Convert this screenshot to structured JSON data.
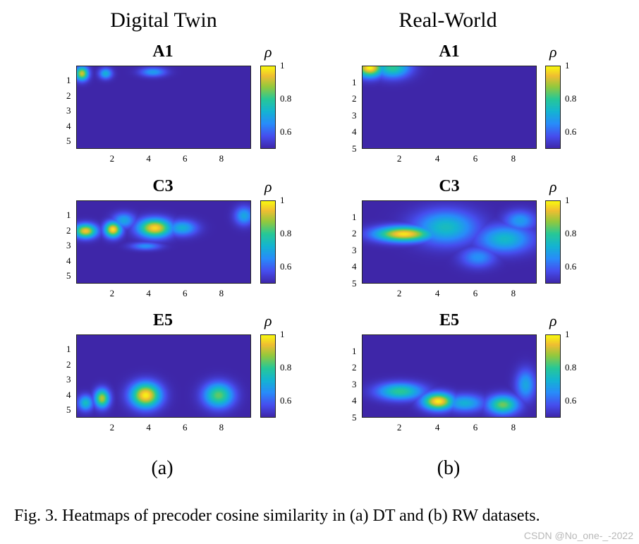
{
  "columns": [
    {
      "title": "Digital Twin",
      "sublabel": "(a)"
    },
    {
      "title": "Real-World",
      "sublabel": "(b)"
    }
  ],
  "caption": "Fig. 3.   Heatmaps of precoder cosine similarity in (a) DT and (b) RW datasets.",
  "watermark": "CSDN @No_one-_-2022",
  "colorbar_label": "ρ",
  "colorbar_ticks": [
    "0.6",
    "0.8",
    "1"
  ],
  "x_ticks": [
    "2",
    "4",
    "6",
    "8"
  ],
  "y_ticks": [
    "1",
    "2",
    "3",
    "4",
    "5"
  ],
  "colors": {
    "low": "#3d26a8",
    "mid": "#14b8b8",
    "high": "#f9fb0e"
  },
  "chart_data": [
    {
      "type": "heatmap",
      "column": "Digital Twin",
      "title": "A1",
      "xlim": [
        0,
        9.6
      ],
      "ylim": [
        0,
        5.5
      ],
      "clim": [
        0.5,
        1
      ],
      "blobs": [
        {
          "x": 0.3,
          "y": 0.5,
          "value": 0.92,
          "sx": 0.35,
          "sy": 0.45
        },
        {
          "x": 1.6,
          "y": 0.5,
          "value": 0.72,
          "sx": 0.35,
          "sy": 0.35
        },
        {
          "x": 4.2,
          "y": 0.4,
          "value": 0.68,
          "sx": 0.7,
          "sy": 0.3
        }
      ]
    },
    {
      "type": "heatmap",
      "column": "Digital Twin",
      "title": "C3",
      "xlim": [
        0,
        9.6
      ],
      "ylim": [
        0,
        5.5
      ],
      "clim": [
        0.5,
        1
      ],
      "blobs": [
        {
          "x": 0.5,
          "y": 2.0,
          "value": 0.95,
          "sx": 0.6,
          "sy": 0.45
        },
        {
          "x": 2.0,
          "y": 1.9,
          "value": 0.98,
          "sx": 0.45,
          "sy": 0.5
        },
        {
          "x": 4.3,
          "y": 1.8,
          "value": 0.97,
          "sx": 0.9,
          "sy": 0.6
        },
        {
          "x": 2.6,
          "y": 1.3,
          "value": 0.7,
          "sx": 0.6,
          "sy": 0.5
        },
        {
          "x": 5.8,
          "y": 1.8,
          "value": 0.72,
          "sx": 0.8,
          "sy": 0.5
        },
        {
          "x": 3.8,
          "y": 3.0,
          "value": 0.66,
          "sx": 0.8,
          "sy": 0.25
        },
        {
          "x": 9.2,
          "y": 1.0,
          "value": 0.7,
          "sx": 0.5,
          "sy": 0.6
        }
      ]
    },
    {
      "type": "heatmap",
      "column": "Digital Twin",
      "title": "E5",
      "xlim": [
        0,
        9.6
      ],
      "ylim": [
        0,
        5.5
      ],
      "clim": [
        0.5,
        1
      ],
      "blobs": [
        {
          "x": 1.4,
          "y": 4.2,
          "value": 0.9,
          "sx": 0.4,
          "sy": 0.6
        },
        {
          "x": 0.5,
          "y": 4.5,
          "value": 0.75,
          "sx": 0.4,
          "sy": 0.5
        },
        {
          "x": 3.8,
          "y": 4.0,
          "value": 0.99,
          "sx": 0.8,
          "sy": 0.8
        },
        {
          "x": 7.8,
          "y": 4.0,
          "value": 0.84,
          "sx": 0.8,
          "sy": 0.8
        }
      ]
    },
    {
      "type": "heatmap",
      "column": "Real-World",
      "title": "A1",
      "xlim": [
        0,
        9.2
      ],
      "ylim": [
        0,
        5.0
      ],
      "clim": [
        0.5,
        1
      ],
      "blobs": [
        {
          "x": 0.4,
          "y": 0.1,
          "value": 1.0,
          "sx": 0.7,
          "sy": 0.55
        },
        {
          "x": 1.6,
          "y": 0.1,
          "value": 0.8,
          "sx": 0.9,
          "sy": 0.6
        }
      ]
    },
    {
      "type": "heatmap",
      "column": "Real-World",
      "title": "C3",
      "xlim": [
        0,
        9.2
      ],
      "ylim": [
        0,
        5.0
      ],
      "clim": [
        0.5,
        1
      ],
      "blobs": [
        {
          "x": 2.2,
          "y": 2.0,
          "value": 0.98,
          "sx": 1.5,
          "sy": 0.45
        },
        {
          "x": 4.4,
          "y": 1.6,
          "value": 0.75,
          "sx": 1.6,
          "sy": 1.0
        },
        {
          "x": 7.5,
          "y": 2.3,
          "value": 0.74,
          "sx": 1.4,
          "sy": 0.8
        },
        {
          "x": 8.3,
          "y": 1.2,
          "value": 0.68,
          "sx": 0.8,
          "sy": 0.6
        },
        {
          "x": 6.1,
          "y": 3.4,
          "value": 0.66,
          "sx": 0.9,
          "sy": 0.6
        }
      ]
    },
    {
      "type": "heatmap",
      "column": "Real-World",
      "title": "E5",
      "xlim": [
        0,
        9.2
      ],
      "ylim": [
        0,
        5.0
      ],
      "clim": [
        0.5,
        1
      ],
      "blobs": [
        {
          "x": 4.0,
          "y": 4.0,
          "value": 0.99,
          "sx": 0.8,
          "sy": 0.5
        },
        {
          "x": 2.0,
          "y": 3.4,
          "value": 0.8,
          "sx": 1.2,
          "sy": 0.5
        },
        {
          "x": 5.4,
          "y": 4.1,
          "value": 0.72,
          "sx": 1.0,
          "sy": 0.5
        },
        {
          "x": 7.4,
          "y": 4.2,
          "value": 0.85,
          "sx": 0.8,
          "sy": 0.55
        },
        {
          "x": 8.6,
          "y": 3.0,
          "value": 0.7,
          "sx": 0.5,
          "sy": 0.9
        }
      ]
    }
  ]
}
